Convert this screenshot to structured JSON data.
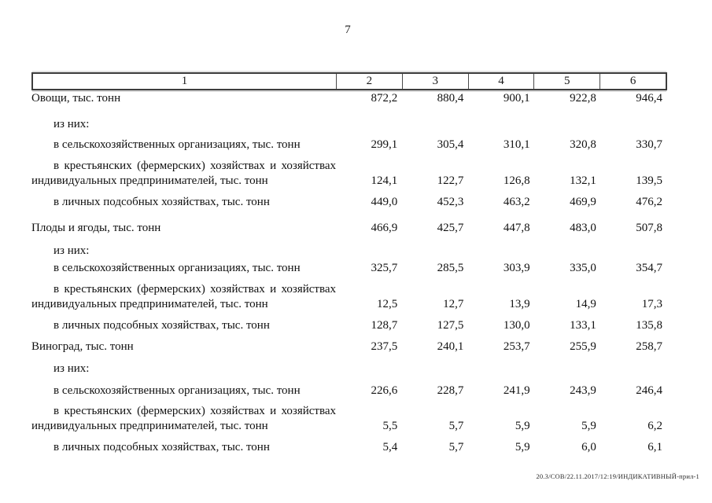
{
  "page": {
    "number": "7",
    "footer_stamp": "20.3/СОВ/22.11.2017/12:19/ИНДИКАТИВНЫЙ-прил-1"
  },
  "table": {
    "header": [
      "1",
      "2",
      "3",
      "4",
      "5",
      "6"
    ],
    "rows": [
      {
        "type": "category",
        "label": "Овощи, тыс. тонн",
        "values": [
          "872,2",
          "880,4",
          "900,1",
          "922,8",
          "946,4"
        ]
      },
      {
        "type": "sub",
        "label": "из них:",
        "values": [
          "",
          "",
          "",
          "",
          ""
        ]
      },
      {
        "type": "sub",
        "label": "в сельскохозяйственных организациях, тыс. тонн",
        "values": [
          "299,1",
          "305,4",
          "310,1",
          "320,8",
          "330,7"
        ]
      },
      {
        "type": "sub2",
        "label": "в крестьянских (фермерских) хозяйствах и хозяйствах индивидуальных предпринимателей, тыс. тонн",
        "values": [
          "124,1",
          "122,7",
          "126,8",
          "132,1",
          "139,5"
        ]
      },
      {
        "type": "sub",
        "label": "в личных подсобных хозяйствах, тыс. тонн",
        "values": [
          "449,0",
          "452,3",
          "463,2",
          "469,9",
          "476,2"
        ]
      },
      {
        "type": "category",
        "label": "Плоды и ягоды, тыс. тонн",
        "values": [
          "466,9",
          "425,7",
          "447,8",
          "483,0",
          "507,8"
        ]
      },
      {
        "type": "sub",
        "label": "из них:",
        "values": [
          "",
          "",
          "",
          "",
          ""
        ]
      },
      {
        "type": "sub",
        "label": "в сельскохозяйственных организациях, тыс. тонн",
        "values": [
          "325,7",
          "285,5",
          "303,9",
          "335,0",
          "354,7"
        ]
      },
      {
        "type": "sub2",
        "label": "в крестьянских (фермерских) хозяйствах и хозяйствах индивидуальных предпринимателей, тыс. тонн",
        "values": [
          "12,5",
          "12,7",
          "13,9",
          "14,9",
          "17,3"
        ]
      },
      {
        "type": "sub",
        "label": "в личных подсобных хозяйствах, тыс. тонн",
        "values": [
          "128,7",
          "127,5",
          "130,0",
          "133,1",
          "135,8"
        ]
      },
      {
        "type": "category",
        "label": "Виноград, тыс. тонн",
        "values": [
          "237,5",
          "240,1",
          "253,7",
          "255,9",
          "258,7"
        ]
      },
      {
        "type": "sub",
        "label": "из них:",
        "values": [
          "",
          "",
          "",
          "",
          ""
        ]
      },
      {
        "type": "sub",
        "label": "в сельскохозяйственных организациях, тыс. тонн",
        "values": [
          "226,6",
          "228,7",
          "241,9",
          "243,9",
          "246,4"
        ]
      },
      {
        "type": "sub2",
        "label": "в крестьянских (фермерских) хозяйствах и хозяйствах индивидуальных предпринимателей, тыс. тонн",
        "values": [
          "5,5",
          "5,7",
          "5,9",
          "5,9",
          "6,2"
        ]
      },
      {
        "type": "sub",
        "label": "в личных подсобных хозяйствах, тыс. тонн",
        "values": [
          "5,4",
          "5,7",
          "5,9",
          "6,0",
          "6,1"
        ]
      }
    ]
  }
}
